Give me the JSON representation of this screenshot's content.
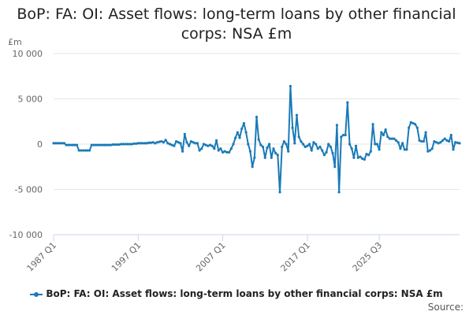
{
  "title_line1": "BoP: FA: OI: Asset flows: long-term loans by other financial",
  "title_line2": "corps: NSA £m",
  "source_label": "Source:",
  "colors": {
    "series": "#1a7ab8",
    "grid": "#e6e6e6",
    "axis": "#ccd6eb"
  },
  "chart_data": {
    "type": "line",
    "title": "BoP: FA: OI: Asset flows: long-term loans by other financial corps: NSA £m",
    "ylabel": "£m",
    "ylim": [
      -10000,
      10000
    ],
    "yticks": [
      {
        "value": 10000,
        "label": "10 000"
      },
      {
        "value": 5000,
        "label": "5 000"
      },
      {
        "value": 0,
        "label": "0"
      },
      {
        "value": -5000,
        "label": "-5 000"
      },
      {
        "value": -10000,
        "label": "-10 000"
      }
    ],
    "xticks": [
      "1987 Q1",
      "1997 Q1",
      "2007 Q1",
      "2017 Q1",
      "2025 Q3"
    ],
    "grid": true,
    "legend_position": "bottom",
    "series": [
      {
        "name": "BoP: FA: OI: Asset flows: long-term loans by other financial corps: NSA £m",
        "start": "1987 Q1",
        "values": [
          100,
          100,
          100,
          100,
          100,
          100,
          -100,
          -100,
          -100,
          -100,
          -100,
          -100,
          -700,
          -700,
          -700,
          -700,
          -700,
          -700,
          -100,
          -100,
          -100,
          -100,
          -100,
          -100,
          -100,
          -100,
          -100,
          -100,
          -50,
          -50,
          -50,
          -50,
          0,
          0,
          0,
          0,
          0,
          0,
          50,
          50,
          100,
          100,
          100,
          100,
          100,
          150,
          150,
          200,
          100,
          200,
          250,
          300,
          200,
          450,
          100,
          0,
          -100,
          -200,
          300,
          200,
          100,
          -800,
          1100,
          200,
          -200,
          300,
          200,
          100,
          100,
          -700,
          -500,
          0,
          -100,
          -200,
          -100,
          -200,
          -500,
          400,
          -700,
          -500,
          -900,
          -800,
          -900,
          -900,
          -500,
          0,
          700,
          1300,
          700,
          1700,
          2300,
          1300,
          0,
          -800,
          -2500,
          -1500,
          3000,
          500,
          -100,
          -300,
          -1500,
          -400,
          0,
          -1500,
          -500,
          -1000,
          -1200,
          -5300,
          -300,
          300,
          0,
          -800,
          6400,
          1800,
          100,
          3200,
          800,
          300,
          0,
          -300,
          -200,
          0,
          -700,
          200,
          0,
          -500,
          -300,
          -700,
          -1200,
          -900,
          0,
          -300,
          -1000,
          -2500,
          2100,
          -5300,
          800,
          1000,
          1000,
          4600,
          0,
          -500,
          -1500,
          -200,
          -1500,
          -1400,
          -1600,
          -1700,
          -1100,
          -1200,
          -800,
          2200,
          0,
          0,
          -600,
          1300,
          1000,
          1600,
          800,
          600,
          600,
          600,
          400,
          200,
          -500,
          100,
          -600,
          -600,
          1800,
          2400,
          2300,
          2200,
          1800,
          400,
          300,
          300,
          1300,
          -800,
          -700,
          -500,
          300,
          200,
          100,
          200,
          400,
          600,
          400,
          300,
          1000,
          -600,
          200,
          150,
          100
        ]
      }
    ]
  }
}
